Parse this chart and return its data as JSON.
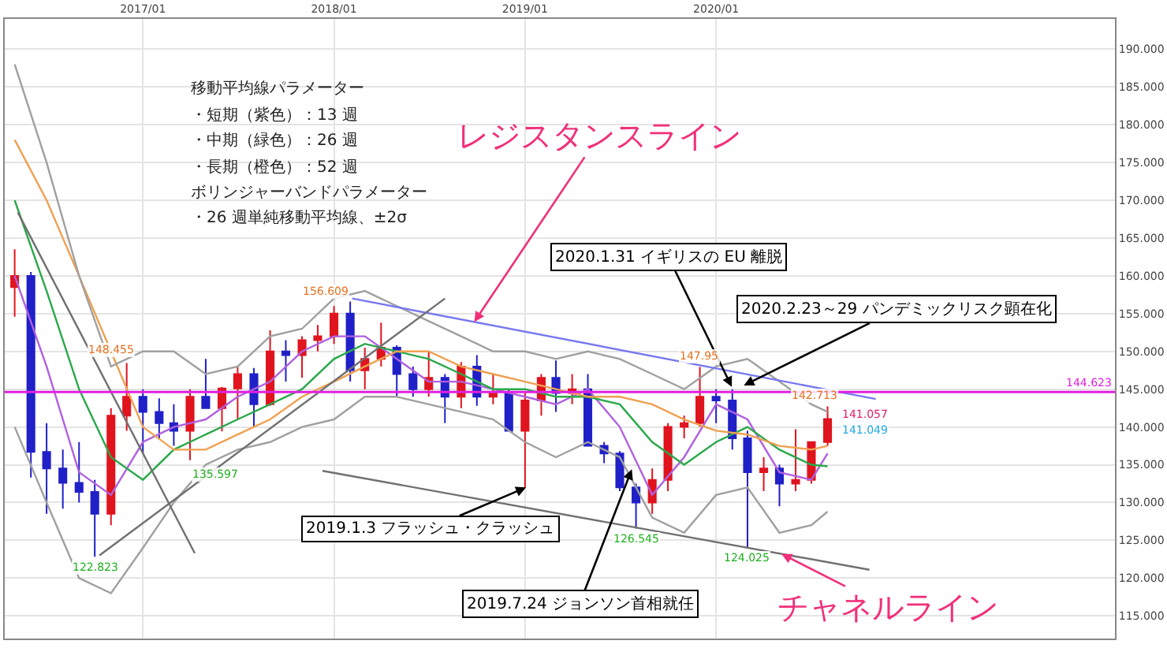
{
  "chart_data": {
    "type": "candlestick",
    "x": [
      "2016-05",
      "2016-06",
      "2016-07",
      "2016-08",
      "2016-09",
      "2016-10",
      "2016-11",
      "2016-12",
      "2017-01",
      "2017-02",
      "2017-03",
      "2017-04",
      "2017-05",
      "2017-06",
      "2017-07",
      "2017-08",
      "2017-09",
      "2017-10",
      "2017-11",
      "2017-12",
      "2018-01",
      "2018-02",
      "2018-03",
      "2018-04",
      "2018-05",
      "2018-06",
      "2018-07",
      "2018-08",
      "2018-09",
      "2018-10",
      "2018-11",
      "2018-12",
      "2019-01",
      "2019-02",
      "2019-03",
      "2019-04",
      "2019-05",
      "2019-06",
      "2019-07",
      "2019-08",
      "2019-09",
      "2019-10",
      "2019-11",
      "2019-12",
      "2020-01",
      "2020-02",
      "2020-03",
      "2020-04",
      "2020-05",
      "2020-06",
      "2020-07",
      "2020-08"
    ],
    "ohlc": [
      [
        158.5,
        163.5,
        154.6,
        160.0
      ],
      [
        160.0,
        160.5,
        133.3,
        136.7
      ],
      [
        136.7,
        140.5,
        128.5,
        134.5
      ],
      [
        134.5,
        137.0,
        129.2,
        132.6
      ],
      [
        132.6,
        138.0,
        130.0,
        131.4
      ],
      [
        131.4,
        133.0,
        122.823,
        128.5
      ],
      [
        128.5,
        142.5,
        127.0,
        141.5
      ],
      [
        141.5,
        148.455,
        139.5,
        144.0
      ],
      [
        144.0,
        145.0,
        136.5,
        142.0
      ],
      [
        142.0,
        143.8,
        138.5,
        140.5
      ],
      [
        140.5,
        143.0,
        137.5,
        139.5
      ],
      [
        139.5,
        145.0,
        135.597,
        144.0
      ],
      [
        144.0,
        149.0,
        142.5,
        142.5
      ],
      [
        142.5,
        145.3,
        139.4,
        145.1
      ],
      [
        145.1,
        148.0,
        141.0,
        147.0
      ],
      [
        147.0,
        147.8,
        140.0,
        143.0
      ],
      [
        143.0,
        152.8,
        142.8,
        150.0
      ],
      [
        150.0,
        151.5,
        146.0,
        149.5
      ],
      [
        149.5,
        152.0,
        146.5,
        151.5
      ],
      [
        151.5,
        153.5,
        150.0,
        152.0
      ],
      [
        152.0,
        156.0,
        151.0,
        155.0
      ],
      [
        155.0,
        156.609,
        146.0,
        147.5
      ],
      [
        147.5,
        150.5,
        145.0,
        149.0
      ],
      [
        149.0,
        153.8,
        148.0,
        150.5
      ],
      [
        150.5,
        150.8,
        144.0,
        147.0
      ],
      [
        147.0,
        148.0,
        144.0,
        145.0
      ],
      [
        145.0,
        150.0,
        144.0,
        146.5
      ],
      [
        146.5,
        147.0,
        140.5,
        144.0
      ],
      [
        144.0,
        148.6,
        142.5,
        148.0
      ],
      [
        148.0,
        149.5,
        142.8,
        144.0
      ],
      [
        144.0,
        147.0,
        143.0,
        144.5
      ],
      [
        144.5,
        145.0,
        139.5,
        139.5
      ],
      [
        139.5,
        144.5,
        132.0,
        143.5
      ],
      [
        143.5,
        147.0,
        141.5,
        146.5
      ],
      [
        146.5,
        148.8,
        142.0,
        144.5
      ],
      [
        144.5,
        147.0,
        143.0,
        145.0
      ],
      [
        145.0,
        147.0,
        137.5,
        137.5
      ],
      [
        137.5,
        138.0,
        135.2,
        136.5
      ],
      [
        136.5,
        136.8,
        131.5,
        132.0
      ],
      [
        132.0,
        132.5,
        126.545,
        130.0
      ],
      [
        130.0,
        134.5,
        128.5,
        133.0
      ],
      [
        133.0,
        140.5,
        131.5,
        140.0
      ],
      [
        140.0,
        141.5,
        138.5,
        140.5
      ],
      [
        140.5,
        147.95,
        140.0,
        144.0
      ],
      [
        144.0,
        145.0,
        140.5,
        143.5
      ],
      [
        143.5,
        145.0,
        137.0,
        138.5
      ],
      [
        138.5,
        139.5,
        124.025,
        134.0
      ],
      [
        134.0,
        136.0,
        131.5,
        134.5
      ],
      [
        134.5,
        135.0,
        129.5,
        132.5
      ],
      [
        132.5,
        139.7,
        131.5,
        133.0
      ],
      [
        133.0,
        138.0,
        132.5,
        138.0
      ],
      [
        138.0,
        142.713,
        137.5,
        141.057
      ]
    ],
    "colors": [
      "#e0141e",
      "#2020c8",
      "#2020c8",
      "#2020c8",
      "#2020c8",
      "#2020c8",
      "#e0141e",
      "#e0141e",
      "#2020c8",
      "#2020c8",
      "#2020c8",
      "#e0141e",
      "#2020c8",
      "#e0141e",
      "#e0141e",
      "#2020c8",
      "#e0141e",
      "#2020c8",
      "#e0141e",
      "#e0141e",
      "#e0141e",
      "#2020c8",
      "#e0141e",
      "#e0141e",
      "#2020c8",
      "#2020c8",
      "#e0141e",
      "#2020c8",
      "#e0141e",
      "#2020c8",
      "#e0141e",
      "#2020c8",
      "#e0141e",
      "#e0141e",
      "#2020c8",
      "#e0141e",
      "#2020c8",
      "#2020c8",
      "#2020c8",
      "#2020c8",
      "#e0141e",
      "#e0141e",
      "#e0141e",
      "#e0141e",
      "#2020c8",
      "#2020c8",
      "#2020c8",
      "#e0141e",
      "#2020c8",
      "#e0141e",
      "#e0141e",
      "#e0141e"
    ],
    "series": [
      {
        "type": "line",
        "color": "#b060e0",
        "x": [
          "2016-05",
          "2016-07",
          "2016-09",
          "2016-11",
          "2017-01",
          "2017-03",
          "2017-05",
          "2017-07",
          "2017-09",
          "2017-11",
          "2018-01",
          "2018-03",
          "2018-05",
          "2018-07",
          "2018-09",
          "2018-11",
          "2019-01",
          "2019-03",
          "2019-05",
          "2019-07",
          "2019-09",
          "2019-11",
          "2020-01",
          "2020-03",
          "2020-05",
          "2020-07",
          "2020-08"
        ],
        "values": [
          160,
          148,
          134,
          131,
          138,
          140,
          141,
          144,
          146,
          150,
          152,
          152,
          149,
          146,
          146,
          145,
          144,
          143,
          145,
          140,
          131,
          136,
          143,
          141,
          134,
          133,
          136.5
        ]
      },
      {
        "type": "line",
        "color": "#2aa84a",
        "x": [
          "2016-05",
          "2016-07",
          "2016-09",
          "2016-11",
          "2017-01",
          "2017-03",
          "2017-05",
          "2017-07",
          "2017-09",
          "2017-11",
          "2018-01",
          "2018-03",
          "2018-05",
          "2018-07",
          "2018-09",
          "2018-11",
          "2019-01",
          "2019-03",
          "2019-05",
          "2019-07",
          "2019-09",
          "2019-11",
          "2020-01",
          "2020-03",
          "2020-05",
          "2020-07",
          "2020-08"
        ],
        "values": [
          170,
          158,
          145,
          136,
          133,
          137,
          139,
          141,
          143,
          145,
          149,
          151,
          150,
          149,
          147,
          145,
          145,
          144,
          144,
          143,
          138,
          135,
          138,
          140,
          137,
          135,
          134.8
        ]
      },
      {
        "type": "line",
        "color": "#f0a050",
        "x": [
          "2016-05",
          "2016-07",
          "2016-09",
          "2016-11",
          "2017-01",
          "2017-03",
          "2017-05",
          "2017-07",
          "2017-09",
          "2017-11",
          "2018-01",
          "2018-03",
          "2018-05",
          "2018-07",
          "2018-09",
          "2018-11",
          "2019-01",
          "2019-03",
          "2019-05",
          "2019-07",
          "2019-09",
          "2019-11",
          "2020-01",
          "2020-03",
          "2020-05",
          "2020-07",
          "2020-08"
        ],
        "values": [
          178,
          170,
          160,
          150,
          140,
          137,
          137,
          139,
          141,
          144,
          146,
          148,
          150,
          150,
          148,
          147,
          146,
          145,
          144,
          144,
          143,
          141,
          139.5,
          139,
          137.5,
          137,
          137.5
        ]
      },
      {
        "type": "line",
        "color": "#a0a0a0",
        "x": [
          "2016-05",
          "2016-07",
          "2016-09",
          "2016-11",
          "2017-01",
          "2017-03",
          "2017-05",
          "2017-07",
          "2017-09",
          "2017-11",
          "2018-01",
          "2018-03",
          "2018-05",
          "2018-07",
          "2018-09",
          "2018-11",
          "2019-01",
          "2019-03",
          "2019-05",
          "2019-07",
          "2019-09",
          "2019-11",
          "2020-01",
          "2020-03",
          "2020-05",
          "2020-07",
          "2020-08"
        ],
        "values": [
          188,
          175,
          160,
          148,
          150,
          150,
          147,
          148,
          152,
          153,
          157,
          158,
          156,
          154,
          152,
          150,
          150,
          149,
          150,
          149,
          147,
          145,
          148,
          149,
          146,
          143,
          142
        ]
      },
      {
        "type": "line",
        "color": "#a0a0a0",
        "x": [
          "2016-05",
          "2016-07",
          "2016-09",
          "2016-11",
          "2017-01",
          "2017-03",
          "2017-05",
          "2017-07",
          "2017-09",
          "2017-11",
          "2018-01",
          "2018-03",
          "2018-05",
          "2018-07",
          "2018-09",
          "2018-11",
          "2019-01",
          "2019-03",
          "2019-05",
          "2019-07",
          "2019-09",
          "2019-11",
          "2020-01",
          "2020-03",
          "2020-05",
          "2020-07",
          "2020-08"
        ],
        "values": [
          140,
          130,
          120,
          118,
          124,
          130,
          135,
          137,
          138,
          140,
          141,
          144,
          144,
          143,
          142,
          141,
          138,
          136,
          138,
          136,
          128,
          126,
          131,
          132,
          126,
          127,
          128.8
        ]
      },
      {
        "type": "line",
        "color": "#7878f0",
        "x": [
          "2018-02-05",
          "2020-11-01"
        ],
        "values": [
          157.0,
          143.7
        ]
      },
      {
        "type": "line",
        "color": "#707070",
        "x": [
          "2016-10-10",
          "2018-08-01"
        ],
        "values": [
          123.0,
          157.0
        ]
      },
      {
        "type": "line",
        "color": "#707070",
        "x": [
          "2016-05-07",
          "2017-04-10"
        ],
        "values": [
          168.4,
          123.3
        ]
      },
      {
        "type": "line",
        "color": "#707070",
        "x": [
          "2017-12-10",
          "2020-10-20"
        ],
        "values": [
          134.2,
          121.1
        ]
      }
    ],
    "ref_lines": [
      {
        "axis": "y",
        "value": 144.623,
        "label": "144.623",
        "color": "#e020e0"
      }
    ],
    "annotations": [
      "移動平均線パラメーター",
      "・短期（紫色）：13 週",
      "・中期（緑色）：26 週",
      "・長期（橙色）：52 週",
      "ボリンジャーバンドパラメーター",
      "・26 週単純移動平均線、±2σ",
      {
        "text": "レジスタンスライン",
        "x": "2018-09-26",
        "y": 153.9
      },
      {
        "text": "チャネルライン",
        "x": "2020-05-05",
        "y": 123.2
      },
      {
        "text": "2020.1.31 イギリスの EU 離脱",
        "x": "2020-01-31",
        "y": 145.3
      },
      {
        "text": "2020.2.23～29 パンデミックリスク顕在化",
        "x": "2020-02-23",
        "y": 145.5
      },
      {
        "text": "2019.1.3 フラッシュ・クラッシュ",
        "x": "2019-01-03",
        "y": 132.0
      },
      {
        "text": "2019.7.24 ジョンソン首相就任",
        "x": "2019-07-24",
        "y": 134.4
      },
      {
        "text": "156.609",
        "x": "2018-02",
        "y": 156.609
      },
      {
        "text": "148.455",
        "x": "2016-12",
        "y": 148.455
      },
      {
        "text": "147.95",
        "x": "2019-12",
        "y": 147.95
      },
      {
        "text": "142.713",
        "x": "2020-08",
        "y": 142.713
      },
      {
        "text": "122.823",
        "x": "2016-10",
        "y": 122.823
      },
      {
        "text": "135.597",
        "x": "2017-04",
        "y": 135.597
      },
      {
        "text": "126.545",
        "x": "2019-08",
        "y": 126.545
      },
      {
        "text": "124.025",
        "x": "2020-03",
        "y": 124.025
      },
      {
        "text": "141.057",
        "x": "2020-08",
        "y": 141.057
      },
      {
        "text": "141.049",
        "x": "2020-08",
        "y": 141.049
      }
    ],
    "xlim": [
      "2016-04-12",
      "2022-02-01"
    ],
    "xticks": [
      {
        "value": "2017-01-01",
        "label": "2017/01"
      },
      {
        "value": "2018-01-01",
        "label": "2018/01"
      },
      {
        "value": "2019-01-01",
        "label": "2019/01"
      },
      {
        "value": "2020-01-01",
        "label": "2020/01"
      }
    ],
    "ylim": [
      112,
      194
    ],
    "yticks": [
      {
        "value": 115,
        "label": "115.000"
      },
      {
        "value": 120,
        "label": "120.000"
      },
      {
        "value": 125,
        "label": "125.000"
      },
      {
        "value": 130,
        "label": "130.000"
      },
      {
        "value": 135,
        "label": "135.000"
      },
      {
        "value": 140,
        "label": "140.000"
      },
      {
        "value": 145,
        "label": "145.000"
      },
      {
        "value": 150,
        "label": "150.000"
      },
      {
        "value": 155,
        "label": "155.000"
      },
      {
        "value": 160,
        "label": "160.000"
      },
      {
        "value": 165,
        "label": "165.000"
      },
      {
        "value": 170,
        "label": "170.000"
      },
      {
        "value": 175,
        "label": "175.000"
      },
      {
        "value": 180,
        "label": "180.000"
      },
      {
        "value": 185,
        "label": "185.000"
      },
      {
        "value": 190,
        "label": "190.000"
      }
    ],
    "grid": true
  }
}
